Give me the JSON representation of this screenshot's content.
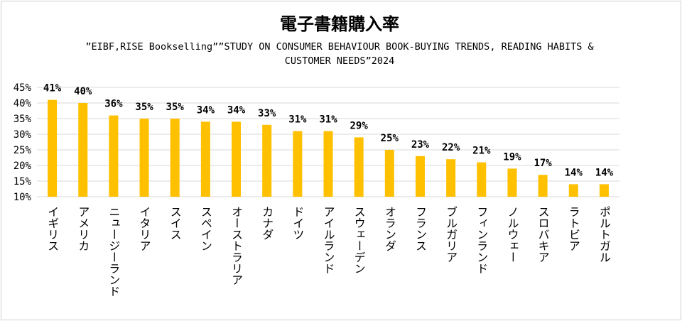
{
  "chart_data": {
    "type": "bar",
    "title": "電子書籍購入率",
    "subtitle": "”EIBF,RISE Bookselling””STUDY ON CONSUMER BEHAVIOUR BOOK-BUYING TRENDS, READING HABITS & CUSTOMER NEEDS”2024",
    "categories": [
      "イギリス",
      "アメリカ",
      "ニュージーランド",
      "イタリア",
      "スイス",
      "スペイン",
      "オーストラリア",
      "カナダ",
      "ドイツ",
      "アイルランド",
      "スウェーデン",
      "オランダ",
      "フランス",
      "ブルガリア",
      "フィンランド",
      "ノルウェー",
      "スロバキア",
      "ラトビア",
      "ポルトガル"
    ],
    "values": [
      41,
      40,
      36,
      35,
      35,
      34,
      34,
      33,
      31,
      31,
      29,
      25,
      23,
      22,
      21,
      19,
      17,
      14,
      14
    ],
    "data_labels": [
      "41%",
      "40%",
      "36%",
      "35%",
      "35%",
      "34%",
      "34%",
      "33%",
      "31%",
      "31%",
      "29%",
      "25%",
      "23%",
      "22%",
      "21%",
      "19%",
      "17%",
      "14%",
      "14%"
    ],
    "y_ticks": [
      10,
      15,
      20,
      25,
      30,
      35,
      40,
      45
    ],
    "y_tick_labels": [
      "10%",
      "15%",
      "20%",
      "25%",
      "30%",
      "35%",
      "40%",
      "45%"
    ],
    "ylim": [
      10,
      45
    ],
    "xlabel": "",
    "ylabel": "",
    "grid": true,
    "bar_color": "#FFC000",
    "grid_color": "#d9d9d9"
  }
}
